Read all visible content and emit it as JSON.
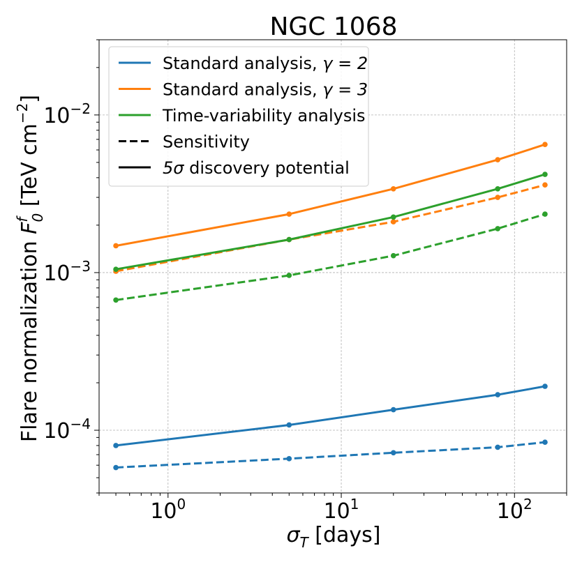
{
  "chart_data": {
    "type": "line",
    "title": "NGC 1068",
    "xlabel": "σ",
    "xlabel_sub": "T",
    "xlabel_unit": " [days]",
    "ylabel": "Flare normalization ",
    "ylabel_sym": "F",
    "ylabel_sub": "0",
    "ylabel_sup": "f",
    "ylabel_unit_open": " [TeV cm",
    "ylabel_unit_exp": "−2",
    "ylabel_unit_close": "]",
    "xscale": "log",
    "yscale": "log",
    "xlim": [
      0.4,
      200
    ],
    "ylim": [
      4e-05,
      0.03
    ],
    "grid": true,
    "x_ticks": [
      {
        "value": 1,
        "base": "10",
        "exp": "0"
      },
      {
        "value": 10,
        "base": "10",
        "exp": "1"
      },
      {
        "value": 100,
        "base": "10",
        "exp": "2"
      }
    ],
    "y_ticks": [
      {
        "value": 0.0001,
        "base": "10",
        "exp": "−4"
      },
      {
        "value": 0.001,
        "base": "10",
        "exp": "−3"
      },
      {
        "value": 0.01,
        "base": "10",
        "exp": "−2"
      }
    ],
    "x": [
      0.5,
      5,
      20,
      80,
      150
    ],
    "series": [
      {
        "name": "Standard analysis γ=2, 5σ discovery potential",
        "color": "#1f77b4",
        "style": "solid",
        "values": [
          8e-05,
          0.000108,
          0.000135,
          0.000168,
          0.00019
        ]
      },
      {
        "name": "Standard analysis γ=2, sensitivity",
        "color": "#1f77b4",
        "style": "dashed",
        "values": [
          5.8e-05,
          6.6e-05,
          7.2e-05,
          7.8e-05,
          8.4e-05
        ]
      },
      {
        "name": "Standard analysis γ=3, 5σ discovery potential",
        "color": "#ff7f0e",
        "style": "solid",
        "values": [
          0.00148,
          0.00235,
          0.0034,
          0.0052,
          0.0065
        ]
      },
      {
        "name": "Standard analysis γ=3, sensitivity",
        "color": "#ff7f0e",
        "style": "dashed",
        "values": [
          0.00102,
          0.00162,
          0.0021,
          0.003,
          0.0036
        ]
      },
      {
        "name": "Time-variability analysis, 5σ discovery potential",
        "color": "#2ca02c",
        "style": "solid",
        "values": [
          0.00105,
          0.00162,
          0.00225,
          0.0034,
          0.0042
        ]
      },
      {
        "name": "Time-variability analysis, sensitivity",
        "color": "#2ca02c",
        "style": "dashed",
        "values": [
          0.00067,
          0.00096,
          0.00128,
          0.0019,
          0.00235
        ]
      }
    ],
    "legend": {
      "position": "upper-left",
      "entries": [
        {
          "label": "Standard analysis, ",
          "math": "γ = 2",
          "color": "#1f77b4",
          "style": "solid"
        },
        {
          "label": "Standard analysis, ",
          "math": "γ = 3",
          "color": "#ff7f0e",
          "style": "solid"
        },
        {
          "label": "Time-variability analysis",
          "math": "",
          "color": "#2ca02c",
          "style": "solid"
        },
        {
          "label": "Sensitivity",
          "math": "",
          "color": "#000000",
          "style": "dashed"
        },
        {
          "label": "",
          "math": "5σ",
          "suffix": " discovery potential",
          "color": "#000000",
          "style": "solid"
        }
      ]
    }
  }
}
